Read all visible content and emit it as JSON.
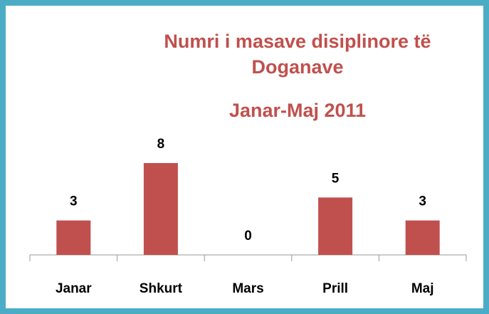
{
  "chart_data": {
    "type": "bar",
    "title": "Numri i masave disiplinore të Doganave",
    "subtitle": "Janar-Maj 2011",
    "categories": [
      "Janar",
      "Shkurt",
      "Mars",
      "Prill",
      "Maj"
    ],
    "values": [
      3,
      8,
      0,
      5,
      3
    ],
    "color": "#c0504d",
    "ylim": [
      0,
      8
    ]
  }
}
